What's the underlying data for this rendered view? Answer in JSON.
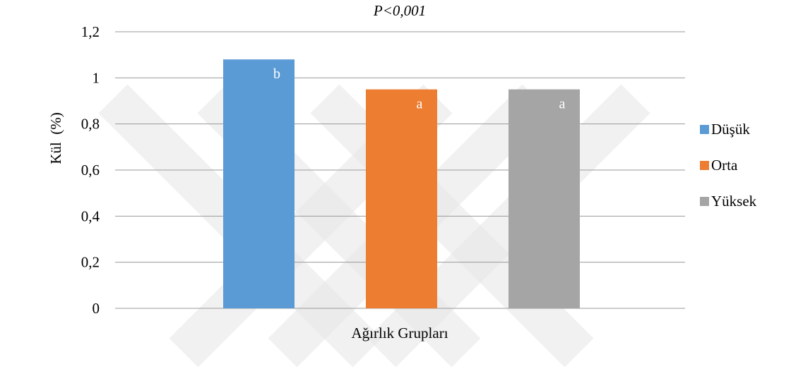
{
  "chart_data": {
    "type": "bar",
    "title": "P<0,001",
    "xlabel": "Ağırlık Grupları",
    "ylabel": "Kül  (%)",
    "ylim": [
      0,
      1.2
    ],
    "yticks": [
      "0",
      "0,2",
      "0,4",
      "0,6",
      "0,8",
      "1",
      "1,2"
    ],
    "ytick_values": [
      0,
      0.2,
      0.4,
      0.6,
      0.8,
      1.0,
      1.2
    ],
    "grid": true,
    "legend_position": "right",
    "series": [
      {
        "name": "Düşük",
        "value": 1.08,
        "label": "b",
        "color": "#5b9bd5"
      },
      {
        "name": "Orta",
        "value": 0.95,
        "label": "a",
        "color": "#ed7d31"
      },
      {
        "name": "Yüksek",
        "value": 0.95,
        "label": "a",
        "color": "#a5a5a5"
      }
    ]
  }
}
